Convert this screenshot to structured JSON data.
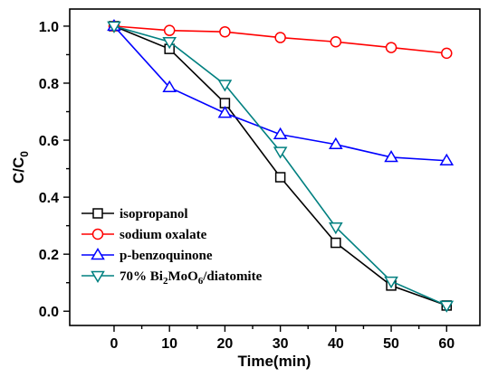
{
  "chart_data": {
    "type": "line",
    "xlabel": "Time(min)",
    "ylabel": {
      "base": "C/C",
      "sub": "0"
    },
    "x": [
      0,
      10,
      20,
      30,
      40,
      50,
      60
    ],
    "xlim": [
      -8,
      66
    ],
    "ylim": [
      -0.05,
      1.06
    ],
    "xticks": [
      0,
      10,
      20,
      30,
      40,
      50,
      60
    ],
    "yticks": [
      0.0,
      0.2,
      0.4,
      0.6,
      0.8,
      1.0
    ],
    "ytick_labels": [
      "0.0",
      "0.2",
      "0.4",
      "0.6",
      "0.8",
      "1.0"
    ],
    "legend_position": "bottom-left",
    "series": [
      {
        "name": "isopropanol",
        "name_parts": [
          {
            "t": "isopropanol",
            "sub": false
          }
        ],
        "color": "#000000",
        "marker": "square",
        "values": [
          1.0,
          0.92,
          0.73,
          0.47,
          0.24,
          0.09,
          0.02
        ]
      },
      {
        "name": "sodium oxalate",
        "name_parts": [
          {
            "t": "sodium oxalate",
            "sub": false
          }
        ],
        "color": "#ff0000",
        "marker": "circle",
        "values": [
          1.0,
          0.985,
          0.98,
          0.96,
          0.945,
          0.925,
          0.905
        ]
      },
      {
        "name": "p-benzoquinone",
        "name_parts": [
          {
            "t": "p-benzoquinone",
            "sub": false
          }
        ],
        "color": "#0000ff",
        "marker": "triangle-up",
        "values": [
          1.0,
          0.785,
          0.695,
          0.62,
          0.585,
          0.54,
          0.528
        ]
      },
      {
        "name": "70% Bi2MoO6/diatomite",
        "name_parts": [
          {
            "t": "70% Bi",
            "sub": false
          },
          {
            "t": "2",
            "sub": true
          },
          {
            "t": "MoO",
            "sub": false
          },
          {
            "t": "6",
            "sub": true
          },
          {
            "t": "/diatomite",
            "sub": false
          }
        ],
        "color": "#008080",
        "marker": "triangle-down",
        "values": [
          1.0,
          0.945,
          0.795,
          0.56,
          0.295,
          0.105,
          0.02
        ]
      }
    ]
  }
}
